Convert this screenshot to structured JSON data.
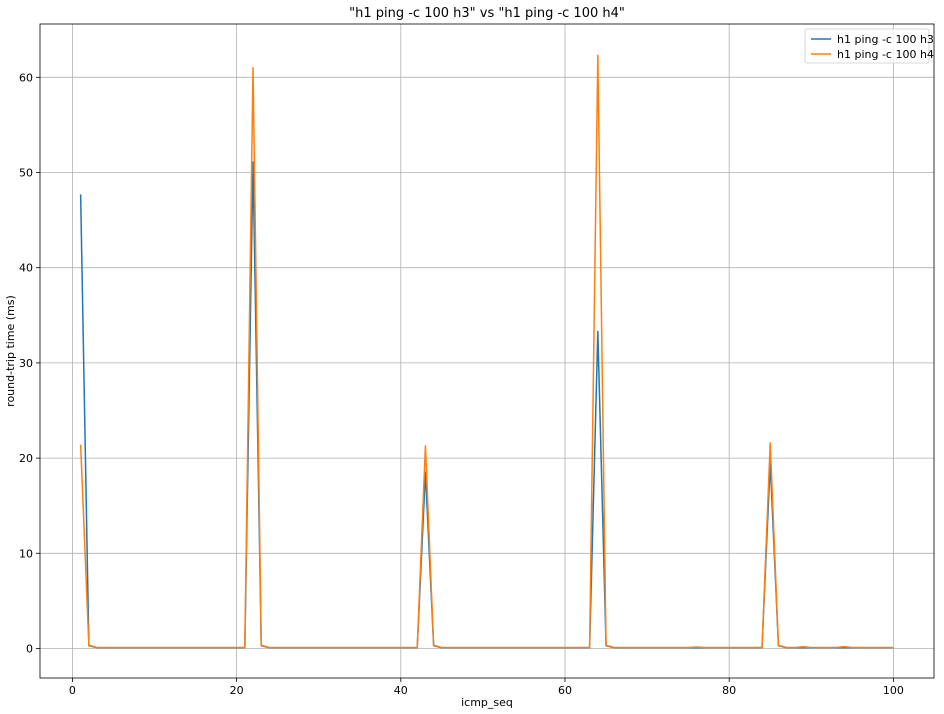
{
  "chart_data": {
    "type": "line",
    "title": "\"h1 ping -c 100 h3\" vs \"h1 ping -c 100 h4\"",
    "xlabel": "icmp_seq",
    "ylabel": "round-trip time (ms)",
    "xlim": [
      -3.95,
      104.95
    ],
    "ylim": [
      -3.1,
      65.6
    ],
    "xticks": [
      0,
      20,
      40,
      60,
      80,
      100
    ],
    "yticks": [
      0,
      10,
      20,
      30,
      40,
      50,
      60
    ],
    "grid": true,
    "legend_position": "top-right",
    "series": [
      {
        "name": "h1 ping -c 100 h3",
        "color": "#1f77b4",
        "x": [
          1,
          2,
          3,
          4,
          20,
          21,
          22,
          23,
          24,
          42,
          43,
          44,
          45,
          63,
          64,
          65,
          66,
          84,
          85,
          86,
          87,
          100
        ],
        "y": [
          47.7,
          0.3,
          0.08,
          0.08,
          0.08,
          0.08,
          51.1,
          0.3,
          0.08,
          0.08,
          18.5,
          0.3,
          0.08,
          0.08,
          33.3,
          0.3,
          0.08,
          0.08,
          19.5,
          0.3,
          0.08,
          0.08
        ]
      },
      {
        "name": "h1 ping -c 100 h4",
        "color": "#ff7f0e",
        "x": [
          1,
          2,
          3,
          4,
          20,
          21,
          22,
          23,
          24,
          42,
          43,
          44,
          45,
          63,
          64,
          65,
          66,
          75,
          76,
          77,
          84,
          85,
          86,
          87,
          88,
          89,
          90,
          93,
          94,
          95,
          100
        ],
        "y": [
          21.4,
          0.35,
          0.1,
          0.1,
          0.1,
          0.1,
          61.0,
          0.35,
          0.1,
          0.1,
          21.3,
          0.35,
          0.1,
          0.1,
          62.3,
          0.35,
          0.1,
          0.1,
          0.15,
          0.1,
          0.1,
          21.6,
          0.35,
          0.1,
          0.1,
          0.18,
          0.1,
          0.1,
          0.2,
          0.1,
          0.1
        ]
      }
    ]
  }
}
